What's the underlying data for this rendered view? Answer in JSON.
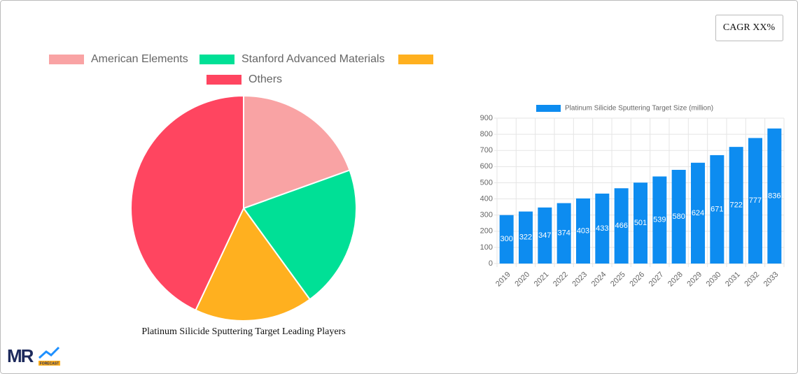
{
  "cagr_badge": "CAGR XX%",
  "logo": {
    "text": "MR",
    "subtext": "FORECAST"
  },
  "chart_data": [
    {
      "type": "pie",
      "caption": "Platinum Silicide Sputtering Target Leading Players",
      "categories": [
        "American Elements",
        "Stanford Advanced Materials",
        null,
        "Others"
      ],
      "values": [
        19.5,
        20.5,
        17,
        43
      ],
      "colors": [
        "#f9a3a4",
        "#00e096",
        "#ffb01f",
        "#ff4560"
      ]
    },
    {
      "type": "bar",
      "legend": "Platinum Silicide Sputtering Target Size (million)",
      "categories": [
        "2019",
        "2020",
        "2021",
        "2022",
        "2023",
        "2024",
        "2025",
        "2026",
        "2027",
        "2028",
        "2029",
        "2030",
        "2031",
        "2032",
        "2033"
      ],
      "values": [
        300,
        322,
        347,
        374,
        403,
        433,
        466,
        501,
        539,
        580,
        624,
        671,
        722,
        777,
        836
      ],
      "color": "#0d8cf0",
      "ylim": [
        0,
        900
      ],
      "yticks": [
        0,
        100,
        200,
        300,
        400,
        500,
        600,
        700,
        800,
        900
      ],
      "grid": true
    }
  ]
}
